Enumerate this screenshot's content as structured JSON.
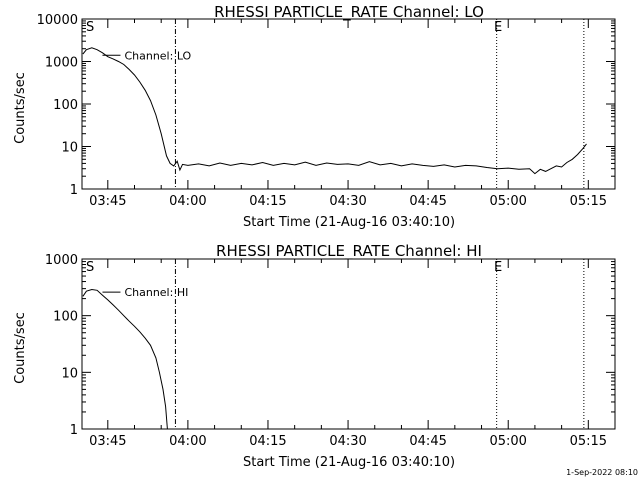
{
  "footer": {
    "date_stamp": "1-Sep-2022 08:10"
  },
  "chart_data": [
    {
      "type": "line",
      "title": "RHESSI PARTICLE_RATE Channel: LO",
      "xlabel": "Start Time (21-Aug-16 03:40:10)",
      "ylabel": "Counts/sec",
      "y_scale": "log",
      "xlim": [
        "03:40:10",
        "05:20:00"
      ],
      "ylim": [
        1,
        10000
      ],
      "x_tick_labels": [
        "03:45",
        "04:00",
        "04:15",
        "04:30",
        "04:45",
        "05:00",
        "05:15"
      ],
      "y_tick_labels": [
        "1",
        "10",
        "100",
        "1000",
        "10000"
      ],
      "y_tick_values": [
        1,
        10,
        100,
        1000,
        10000
      ],
      "markers": {
        "start": "S",
        "end": "E"
      },
      "vlines": [
        {
          "style": "dashdot",
          "x": "03:57:40"
        },
        {
          "style": "dotted",
          "x": "04:57:50"
        },
        {
          "style": "dotted",
          "x": "05:14:10"
        }
      ],
      "series": [
        {
          "name": "Channel: LO",
          "points": [
            [
              "03:40:20",
              1500
            ],
            [
              "03:41:00",
              1900
            ],
            [
              "03:42:00",
              2100
            ],
            [
              "03:43:00",
              1900
            ],
            [
              "03:44:00",
              1600
            ],
            [
              "03:45:00",
              1300
            ],
            [
              "03:46:00",
              1150
            ],
            [
              "03:47:00",
              1000
            ],
            [
              "03:48:00",
              850
            ],
            [
              "03:49:00",
              650
            ],
            [
              "03:50:00",
              480
            ],
            [
              "03:51:00",
              330
            ],
            [
              "03:52:00",
              210
            ],
            [
              "03:53:00",
              120
            ],
            [
              "03:54:00",
              55
            ],
            [
              "03:55:00",
              20
            ],
            [
              "03:56:00",
              6
            ],
            [
              "03:56:40",
              4
            ],
            [
              "03:57:20",
              3.5
            ],
            [
              "03:58:00",
              4.5
            ],
            [
              "03:58:30",
              2.8
            ],
            [
              "03:59:00",
              3.8
            ],
            [
              "04:00:00",
              3.6
            ],
            [
              "04:02:00",
              3.9
            ],
            [
              "04:04:00",
              3.5
            ],
            [
              "04:06:00",
              4.1
            ],
            [
              "04:08:00",
              3.6
            ],
            [
              "04:10:00",
              4.0
            ],
            [
              "04:12:00",
              3.7
            ],
            [
              "04:14:00",
              4.2
            ],
            [
              "04:16:00",
              3.6
            ],
            [
              "04:18:00",
              4.0
            ],
            [
              "04:20:00",
              3.7
            ],
            [
              "04:22:00",
              4.3
            ],
            [
              "04:24:00",
              3.6
            ],
            [
              "04:26:00",
              4.1
            ],
            [
              "04:28:00",
              3.8
            ],
            [
              "04:30:00",
              3.9
            ],
            [
              "04:32:00",
              3.6
            ],
            [
              "04:34:00",
              4.4
            ],
            [
              "04:36:00",
              3.7
            ],
            [
              "04:38:00",
              4.0
            ],
            [
              "04:40:00",
              3.5
            ],
            [
              "04:42:00",
              3.9
            ],
            [
              "04:44:00",
              3.6
            ],
            [
              "04:46:00",
              3.4
            ],
            [
              "04:48:00",
              3.7
            ],
            [
              "04:50:00",
              3.3
            ],
            [
              "04:52:00",
              3.6
            ],
            [
              "04:54:00",
              3.5
            ],
            [
              "04:56:00",
              3.2
            ],
            [
              "04:58:00",
              3.0
            ],
            [
              "05:00:00",
              3.1
            ],
            [
              "05:02:00",
              2.9
            ],
            [
              "05:04:00",
              3.0
            ],
            [
              "05:05:00",
              2.3
            ],
            [
              "05:06:00",
              2.9
            ],
            [
              "05:07:00",
              2.6
            ],
            [
              "05:08:00",
              3.0
            ],
            [
              "05:09:00",
              3.5
            ],
            [
              "05:10:00",
              3.3
            ],
            [
              "05:11:00",
              4.2
            ],
            [
              "05:12:00",
              5.0
            ],
            [
              "05:13:00",
              6.5
            ],
            [
              "05:14:00",
              9.0
            ],
            [
              "05:14:40",
              11.5
            ]
          ]
        }
      ]
    },
    {
      "type": "line",
      "title": "RHESSI PARTICLE_RATE Channel: HI",
      "xlabel": "Start Time (21-Aug-16 03:40:10)",
      "ylabel": "Counts/sec",
      "y_scale": "log",
      "xlim": [
        "03:40:10",
        "05:20:00"
      ],
      "ylim": [
        1,
        1000
      ],
      "x_tick_labels": [
        "03:45",
        "04:00",
        "04:15",
        "04:30",
        "04:45",
        "05:00",
        "05:15"
      ],
      "y_tick_labels": [
        "1",
        "10",
        "100",
        "1000"
      ],
      "y_tick_values": [
        1,
        10,
        100,
        1000
      ],
      "markers": {
        "start": "S",
        "end": "E"
      },
      "vlines": [
        {
          "style": "dashdot",
          "x": "03:57:40"
        },
        {
          "style": "dotted",
          "x": "04:57:50"
        },
        {
          "style": "dotted",
          "x": "05:14:10"
        }
      ],
      "series": [
        {
          "name": "Channel: HI",
          "points": [
            [
              "03:40:20",
              220
            ],
            [
              "03:41:00",
              270
            ],
            [
              "03:42:00",
              290
            ],
            [
              "03:43:00",
              280
            ],
            [
              "03:44:00",
              230
            ],
            [
              "03:45:00",
              190
            ],
            [
              "03:46:00",
              155
            ],
            [
              "03:47:00",
              125
            ],
            [
              "03:48:00",
              100
            ],
            [
              "03:49:00",
              80
            ],
            [
              "03:50:00",
              65
            ],
            [
              "03:51:00",
              52
            ],
            [
              "03:52:00",
              40
            ],
            [
              "03:53:00",
              30
            ],
            [
              "03:54:00",
              18
            ],
            [
              "03:54:40",
              10
            ],
            [
              "03:55:20",
              5
            ],
            [
              "03:55:50",
              2.5
            ],
            [
              "03:56:10",
              1.0
            ]
          ]
        }
      ]
    }
  ]
}
